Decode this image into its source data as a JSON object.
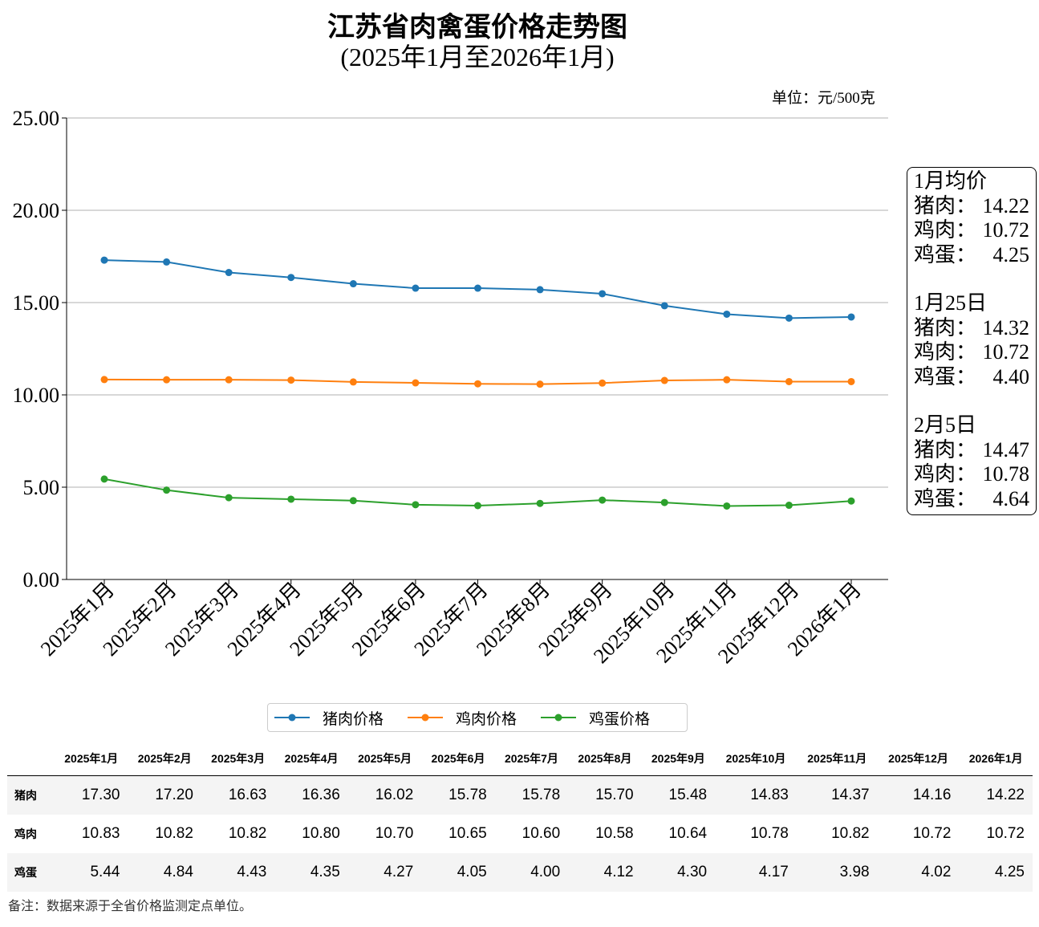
{
  "chart_data": {
    "type": "line",
    "title": "江苏省肉禽蛋价格走势图",
    "subtitle": "(2025年1月至2026年1月)",
    "unit_label": "单位：元/500克",
    "categories": [
      "2025年1月",
      "2025年2月",
      "2025年3月",
      "2025年4月",
      "2025年5月",
      "2025年6月",
      "2025年7月",
      "2025年8月",
      "2025年9月",
      "2025年10月",
      "2025年11月",
      "2025年12月",
      "2026年1月"
    ],
    "ylim": [
      0,
      25
    ],
    "yticks": [
      "0.00",
      "5.00",
      "10.00",
      "15.00",
      "20.00",
      "25.00"
    ],
    "grid": "horizontal",
    "legend_position": "bottom-center",
    "series": [
      {
        "name": "猪肉价格",
        "row_label": "猪肉",
        "color": "#1f77b4",
        "values": [
          17.3,
          17.2,
          16.63,
          16.36,
          16.02,
          15.78,
          15.78,
          15.7,
          15.48,
          14.83,
          14.37,
          14.16,
          14.22
        ]
      },
      {
        "name": "鸡肉价格",
        "row_label": "鸡肉",
        "color": "#ff7f0e",
        "values": [
          10.83,
          10.82,
          10.82,
          10.8,
          10.7,
          10.65,
          10.6,
          10.58,
          10.64,
          10.78,
          10.82,
          10.72,
          10.72
        ]
      },
      {
        "name": "鸡蛋价格",
        "row_label": "鸡蛋",
        "color": "#2ca02c",
        "values": [
          5.44,
          4.84,
          4.43,
          4.35,
          4.27,
          4.05,
          4.0,
          4.12,
          4.3,
          4.17,
          3.98,
          4.02,
          4.25
        ]
      }
    ]
  },
  "infobox": [
    {
      "title": "1月均价",
      "rows": [
        [
          "猪肉：",
          "14.22"
        ],
        [
          "鸡肉：",
          "10.72"
        ],
        [
          "鸡蛋：",
          "4.25"
        ]
      ]
    },
    {
      "title": "1月25日",
      "rows": [
        [
          "猪肉：",
          "14.32"
        ],
        [
          "鸡肉：",
          "10.72"
        ],
        [
          "鸡蛋：",
          "4.40"
        ]
      ]
    },
    {
      "title": "2月5日",
      "rows": [
        [
          "猪肉：",
          "14.47"
        ],
        [
          "鸡肉：",
          "10.78"
        ],
        [
          "鸡蛋：",
          "4.64"
        ]
      ]
    }
  ],
  "note": "备注：数据来源于全省价格监测定点单位。"
}
